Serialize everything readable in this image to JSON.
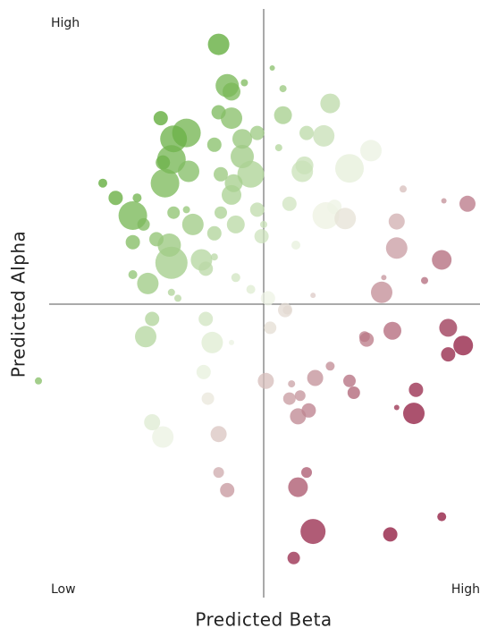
{
  "chart_data": {
    "type": "scatter",
    "x_label": "Predicted Beta",
    "y_label": "Predicted Alpha",
    "y_high_label": "High",
    "x_low_label": "Low",
    "x_high_label": "High",
    "xlim": [
      -1.1,
      1.0
    ],
    "ylim": [
      -1,
      1
    ],
    "colors": {
      "low": "#5aa832",
      "mid": "#eef3e4",
      "high": "#8c1238"
    },
    "x": [
      -0.21,
      -0.17,
      -0.15,
      -0.09,
      0.04,
      0.09,
      0.31,
      -0.48,
      -0.36,
      -0.42,
      -0.21,
      -0.15,
      0.09,
      -0.03,
      -0.1,
      -0.23,
      0.07,
      0.2,
      0.28,
      -0.43,
      -0.47,
      -0.35,
      -0.46,
      -0.1,
      -0.06,
      -0.14,
      -0.2,
      0.18,
      0.19,
      0.4,
      0.5,
      -0.75,
      -0.69,
      -0.59,
      -0.61,
      -0.56,
      -0.42,
      -0.36,
      -0.33,
      -0.2,
      -0.15,
      -0.13,
      -0.23,
      -0.03,
      0.12,
      0.29,
      0.33,
      0.38,
      -0.61,
      -0.5,
      -0.44,
      -0.43,
      -0.29,
      -0.27,
      -0.23,
      -0.13,
      -0.01,
      0.0,
      0.15,
      -0.54,
      -0.61,
      -0.43,
      -0.4,
      -0.06,
      0.23,
      0.1,
      -0.52,
      -0.55,
      -0.27,
      -0.24,
      -1.05,
      -0.47,
      0.62,
      0.65,
      0.84,
      0.95,
      0.62,
      0.83,
      0.75,
      0.55,
      0.56,
      0.02,
      0.11,
      0.03,
      -0.15,
      0.47,
      0.48,
      0.6,
      0.86,
      0.93,
      0.86,
      0.31,
      0.24,
      0.4,
      0.42,
      -0.28,
      0.01,
      0.13,
      0.17,
      0.12,
      -0.26,
      0.71,
      0.62,
      0.7,
      0.21,
      0.16,
      -0.52,
      -0.21,
      -0.21,
      0.2,
      -0.17,
      0.16,
      0.83,
      0.23,
      0.59,
      0.14
    ],
    "values": [
      0.88,
      0.74,
      0.72,
      0.75,
      0.8,
      0.73,
      0.68,
      0.63,
      0.58,
      0.56,
      0.65,
      0.63,
      0.64,
      0.58,
      0.56,
      0.54,
      0.53,
      0.58,
      0.57,
      0.49,
      0.48,
      0.45,
      0.41,
      0.5,
      0.44,
      0.41,
      0.44,
      0.45,
      0.47,
      0.46,
      0.52,
      0.41,
      0.36,
      0.36,
      0.3,
      0.27,
      0.31,
      0.32,
      0.27,
      0.31,
      0.37,
      0.27,
      0.24,
      0.32,
      0.34,
      0.3,
      0.33,
      0.29,
      0.21,
      0.22,
      0.2,
      0.14,
      0.15,
      0.12,
      0.16,
      0.09,
      0.23,
      0.27,
      0.2,
      0.07,
      0.1,
      0.04,
      0.02,
      0.05,
      0.03,
      -0.02,
      -0.05,
      -0.11,
      -0.05,
      -0.13,
      -0.26,
      -0.45,
      0.28,
      0.39,
      0.35,
      0.34,
      0.19,
      0.15,
      0.08,
      0.04,
      0.09,
      0.02,
      -0.02,
      -0.08,
      -0.13,
      -0.11,
      -0.12,
      -0.09,
      -0.08,
      -0.14,
      -0.17,
      -0.21,
      -0.25,
      -0.26,
      -0.3,
      -0.23,
      -0.26,
      -0.27,
      -0.31,
      -0.32,
      -0.32,
      -0.29,
      -0.35,
      -0.37,
      -0.36,
      -0.38,
      -0.4,
      -0.44,
      -0.57,
      -0.57,
      -0.63,
      -0.62,
      -0.72,
      -0.77,
      -0.78,
      -0.86
    ],
    "sizes": [
      12,
      13,
      10,
      4,
      3,
      4,
      11,
      8,
      16,
      15,
      8,
      12,
      10,
      8,
      11,
      8,
      4,
      8,
      12,
      16,
      8,
      12,
      16,
      13,
      15,
      10,
      8,
      12,
      10,
      16,
      12,
      5,
      8,
      5,
      16,
      7,
      7,
      4,
      12,
      7,
      11,
      10,
      8,
      8,
      8,
      15,
      8,
      12,
      8,
      8,
      13,
      18,
      12,
      8,
      4,
      5,
      8,
      4,
      5,
      12,
      5,
      4,
      4,
      5,
      3,
      8,
      8,
      12,
      8,
      12,
      4,
      12,
      9,
      4,
      3,
      9,
      12,
      11,
      4,
      12,
      3,
      8,
      5,
      7,
      3,
      6,
      8,
      10,
      10,
      11,
      8,
      5,
      9,
      7,
      7,
      8,
      9,
      4,
      6,
      7,
      7,
      8,
      3,
      12,
      8,
      9,
      9,
      9,
      6,
      6,
      8,
      11,
      5,
      14,
      8,
      7
    ]
  }
}
